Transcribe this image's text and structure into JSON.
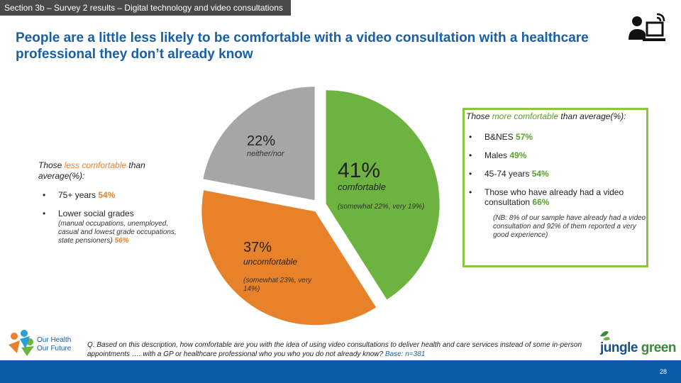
{
  "header": {
    "section": "Section 3b – Survey 2 results – Digital technology and video consultations",
    "title": "People are a little less likely to be comfortable with a video consultation with a healthcare professional they don’t already know"
  },
  "chart_data": {
    "type": "pie",
    "slices": [
      {
        "label": "comfortable",
        "value": 41,
        "display": "41%",
        "note": "(somewhat 22%, very 19%)",
        "color": "#6db33f"
      },
      {
        "label": "uncomfortable",
        "value": 37,
        "display": "37%",
        "note": "(somewhat 23%, very 14%)",
        "color": "#e8822a"
      },
      {
        "label": "neither/nor",
        "value": 22,
        "display": "22%",
        "note": "",
        "color": "#a6a6a6"
      }
    ]
  },
  "less_box": {
    "head_pre": "Those ",
    "head_hl": "less comfortable",
    "head_post": " than average(%):",
    "items": [
      {
        "text": "75+ years ",
        "value": "54%",
        "sub": ""
      },
      {
        "text": "Lower social grades",
        "sub": "(manual occupations, unemployed, casual and lowest grade occupations, state pensioners) ",
        "value": "56%"
      }
    ]
  },
  "more_box": {
    "head_pre": "Those ",
    "head_hl": "more comfortable",
    "head_post": " than average(%):",
    "items": [
      {
        "text": "B&NES ",
        "value": "57%"
      },
      {
        "text": "Males ",
        "value": "49%"
      },
      {
        "text": "45-74 years ",
        "value": "54%"
      },
      {
        "text": "Those who have already had a video consultation ",
        "value": "66%"
      }
    ],
    "footnote": "(NB: 8% of our sample have already had a video consultation and 92% of them reported a very good experience)"
  },
  "question": {
    "text": "Q. Based on this description, how comfortable are you with the idea of using video consultations to deliver health and care services instead of some in-person appointments …. with a GP or healthcare professional who you who you do not already know? ",
    "base": "Base: n=381"
  },
  "logos": {
    "left_line1": "Our Health",
    "left_line2": "Our Future",
    "right_word1": "jungle",
    "right_word2": " green"
  },
  "page_number": "28",
  "icons": {
    "header": "person-video-call-icon",
    "left_logo": "people-group-icon",
    "right_logo": "leaf-icon"
  },
  "colors": {
    "title": "#1a5fa6",
    "comfortable": "#6db33f",
    "uncomfortable": "#e8822a",
    "neither": "#a6a6a6",
    "bar": "#0a5ba8"
  }
}
